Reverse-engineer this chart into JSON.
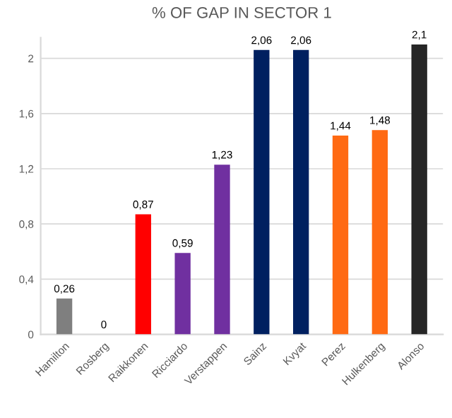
{
  "chart_data": {
    "type": "bar",
    "title": "% OF GAP IN SECTOR 1",
    "categories": [
      "Hamilton",
      "Rosberg",
      "Raikkonen",
      "Ricciardo",
      "Verstappen",
      "Sainz",
      "Kvyat",
      "Perez",
      "Hulkenberg",
      "Alonso"
    ],
    "values": [
      0.26,
      0,
      0.87,
      0.59,
      1.23,
      2.06,
      2.06,
      1.44,
      1.48,
      2.1
    ],
    "colors": [
      "#7f7f7f",
      "#a5a5a5",
      "#ff0000",
      "#7030a0",
      "#7030a0",
      "#002060",
      "#002060",
      "#ff6a13",
      "#ff6a13",
      "#262626"
    ],
    "value_labels": [
      "0,26",
      "0",
      "0,87",
      "0,59",
      "1,23",
      "2,06",
      "2,06",
      "1,44",
      "1,48",
      "2,1"
    ],
    "ylim": [
      0,
      2.15
    ],
    "yticks": [
      {
        "value": 0,
        "label": "0"
      },
      {
        "value": 0.4,
        "label": "0,4"
      },
      {
        "value": 0.8,
        "label": "0,8"
      },
      {
        "value": 1.2,
        "label": "1,2"
      },
      {
        "value": 1.6,
        "label": "1,6"
      },
      {
        "value": 2,
        "label": "2"
      }
    ],
    "grid": "y",
    "legend": false
  }
}
